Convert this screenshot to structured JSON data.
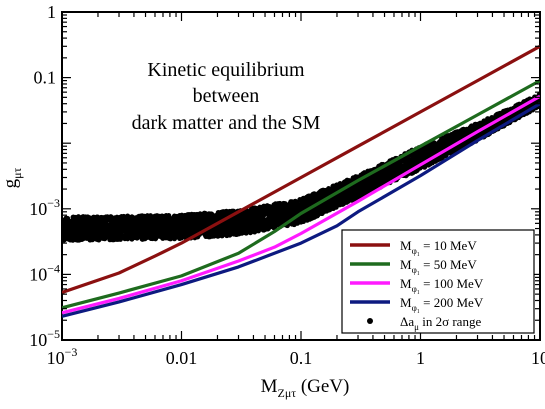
{
  "chart_data": {
    "type": "line",
    "title": "",
    "xlabel": "M",
    "xlabel_sub": "Zμτ",
    "xlabel_unit": " (GeV)",
    "ylabel": "g",
    "ylabel_sub": "μτ",
    "xscale": "log",
    "yscale": "log",
    "xlim": [
      0.001,
      10
    ],
    "ylim": [
      1e-05,
      1
    ],
    "x_ticks": [
      {
        "value": 0.001,
        "base": "10",
        "exp": "−3"
      },
      {
        "value": 0.01,
        "base": "0.01",
        "exp": ""
      },
      {
        "value": 0.1,
        "base": "0.1",
        "exp": ""
      },
      {
        "value": 1,
        "base": "1",
        "exp": ""
      },
      {
        "value": 10,
        "base": "10",
        "exp": ""
      }
    ],
    "y_ticks": [
      {
        "value": 1,
        "base": "1",
        "exp": ""
      },
      {
        "value": 0.1,
        "base": "0.1",
        "exp": ""
      },
      {
        "value": 0.001,
        "base": "10",
        "exp": "−3"
      },
      {
        "value": 0.0001,
        "base": "10",
        "exp": "−4"
      },
      {
        "value": 1e-05,
        "base": "10",
        "exp": "−5"
      }
    ],
    "annotation": [
      "Kinetic equilibrium",
      "between",
      "dark matter and the SM"
    ],
    "legend_position": "bottom-right",
    "series": [
      {
        "name": "M",
        "name_sub": "φ₁",
        "name_rest": " = 10 MeV",
        "color": "#8b1010",
        "points": [
          [
            0.001,
            5.3e-05
          ],
          [
            0.003,
            0.000105
          ],
          [
            0.006,
            0.00019
          ],
          [
            0.01,
            0.0003
          ],
          [
            0.03,
            0.0009
          ],
          [
            0.1,
            0.003
          ],
          [
            0.3,
            0.009
          ],
          [
            1,
            0.03
          ],
          [
            3,
            0.09
          ],
          [
            10,
            0.3
          ]
        ]
      },
      {
        "name": "M",
        "name_sub": "φ₁",
        "name_rest": " = 50 MeV",
        "color": "#1e6b1e",
        "points": [
          [
            0.001,
            3.1e-05
          ],
          [
            0.003,
            5.2e-05
          ],
          [
            0.01,
            9.5e-05
          ],
          [
            0.03,
            0.00021
          ],
          [
            0.06,
            0.00045
          ],
          [
            0.1,
            0.00085
          ],
          [
            0.3,
            0.0027
          ],
          [
            1,
            0.009
          ],
          [
            3,
            0.027
          ],
          [
            10,
            0.09
          ]
        ]
      },
      {
        "name": "M",
        "name_sub": "φ₁",
        "name_rest": " = 100 MeV",
        "color": "#ff1aff",
        "points": [
          [
            0.001,
            2.6e-05
          ],
          [
            0.003,
            4.3e-05
          ],
          [
            0.01,
            8e-05
          ],
          [
            0.03,
            0.00016
          ],
          [
            0.06,
            0.00026
          ],
          [
            0.1,
            0.00042
          ],
          [
            0.3,
            0.0013
          ],
          [
            1,
            0.0047
          ],
          [
            3,
            0.015
          ],
          [
            10,
            0.052
          ]
        ]
      },
      {
        "name": "M",
        "name_sub": "φ₁",
        "name_rest": " = 200 MeV",
        "color": "#0d1a80",
        "points": [
          [
            0.001,
            2.3e-05
          ],
          [
            0.003,
            3.8e-05
          ],
          [
            0.01,
            7e-05
          ],
          [
            0.03,
            0.00013
          ],
          [
            0.1,
            0.0003
          ],
          [
            0.2,
            0.00055
          ],
          [
            0.3,
            0.0009
          ],
          [
            1,
            0.0032
          ],
          [
            3,
            0.011
          ],
          [
            10,
            0.04
          ]
        ]
      }
    ],
    "band": {
      "name": "Δa",
      "name_sub": "μ",
      "name_rest": " in 2σ range",
      "color": "#000000",
      "lower": [
        [
          0.001,
          0.00033
        ],
        [
          0.01,
          0.00035
        ],
        [
          0.03,
          0.0004
        ],
        [
          0.1,
          0.0006
        ],
        [
          0.3,
          0.0015
        ],
        [
          1,
          0.004
        ],
        [
          3,
          0.011
        ],
        [
          10,
          0.037
        ]
      ],
      "upper": [
        [
          0.001,
          0.00075
        ],
        [
          0.01,
          0.0008
        ],
        [
          0.03,
          0.00095
        ],
        [
          0.1,
          0.0014
        ],
        [
          0.3,
          0.0032
        ],
        [
          1,
          0.009
        ],
        [
          3,
          0.02
        ],
        [
          10,
          0.056
        ]
      ]
    }
  }
}
